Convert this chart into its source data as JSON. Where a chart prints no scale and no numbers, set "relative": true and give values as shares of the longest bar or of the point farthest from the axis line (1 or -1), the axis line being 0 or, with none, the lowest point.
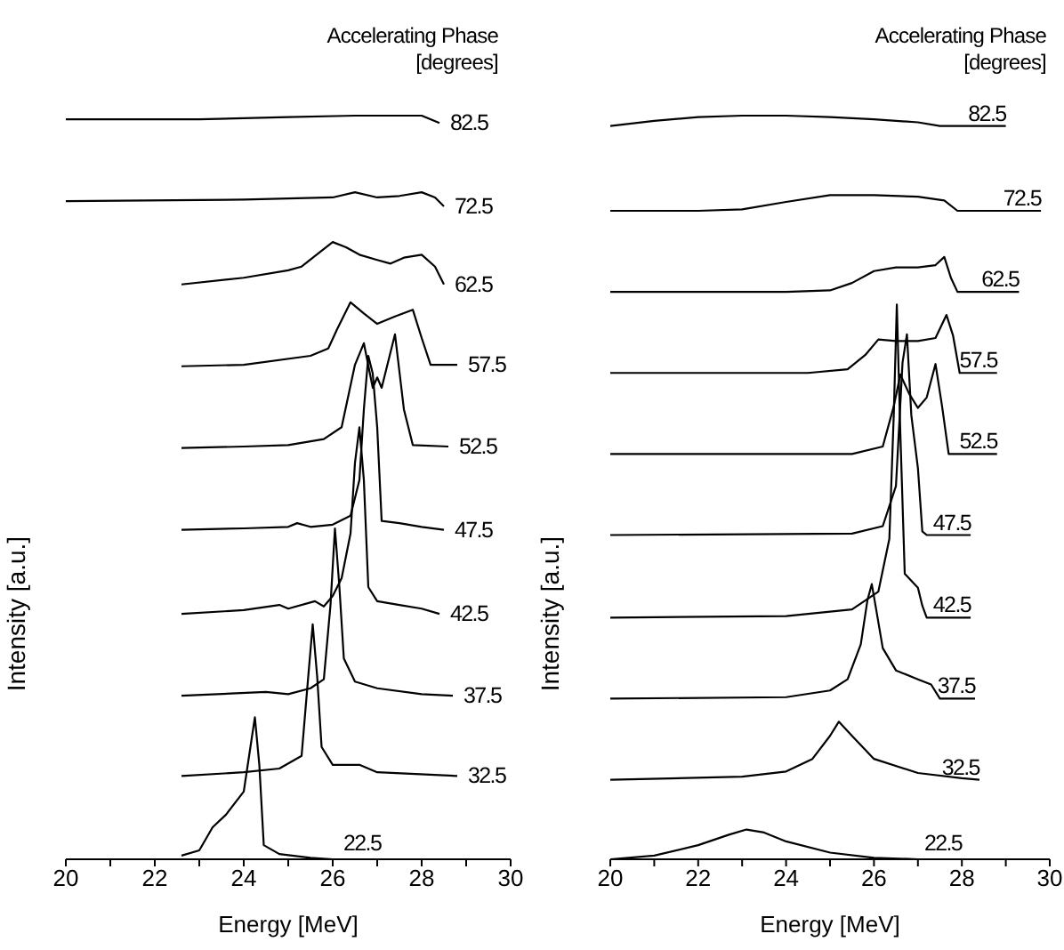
{
  "chart_data": [
    {
      "type": "line",
      "legend_title": "Accelerating Phase [degrees]",
      "xlabel": "Energy [MeV]",
      "ylabel": "Intensity [a.u.]",
      "relative": true,
      "xlim": [
        20,
        30
      ],
      "xticks": [
        20,
        {
          "value": 21,
          "label": null
        },
        22,
        {
          "value": 23,
          "label": null
        },
        24,
        {
          "value": 25,
          "label": null
        },
        26,
        {
          "value": 27,
          "label": null
        },
        28,
        {
          "value": 29,
          "label": null
        },
        30
      ],
      "legend": false,
      "series": [
        {
          "name": "22.5",
          "color": "#000000",
          "x": [
            22.6,
            23.0,
            23.3,
            23.6,
            24.0,
            24.15,
            24.25,
            24.35,
            24.45,
            24.8,
            25.5,
            26
          ],
          "values": [
            0.005,
            0.012,
            0.043,
            0.06,
            0.091,
            0.151,
            0.191,
            0.127,
            0.019,
            0.007,
            0.002,
            0
          ]
        },
        {
          "name": "32.5",
          "color": "#000000",
          "x": [
            22.6,
            24,
            24.8,
            25.3,
            25.45,
            25.55,
            25.65,
            25.75,
            26,
            26.6,
            27,
            28.8
          ],
          "values": [
            0.112,
            0.117,
            0.122,
            0.139,
            0.246,
            0.316,
            0.246,
            0.151,
            0.127,
            0.127,
            0.117,
            0.112
          ]
        },
        {
          "name": "37.5",
          "color": "#000000",
          "x": [
            22.6,
            24.5,
            25,
            25.5,
            25.8,
            25.95,
            26.05,
            26.15,
            26.25,
            26.5,
            27,
            28,
            28.7
          ],
          "values": [
            0.22,
            0.225,
            0.222,
            0.23,
            0.242,
            0.342,
            0.445,
            0.366,
            0.27,
            0.239,
            0.23,
            0.222,
            0.22
          ]
        },
        {
          "name": "42.5",
          "color": "#000000",
          "x": [
            22.6,
            24,
            24.8,
            25,
            25.6,
            25.8,
            26.0,
            26.2,
            26.4,
            26.5,
            26.6,
            26.7,
            26.8,
            27.0,
            27.5,
            28,
            28.4
          ],
          "values": [
            0.33,
            0.335,
            0.342,
            0.337,
            0.347,
            0.34,
            0.354,
            0.378,
            0.438,
            0.533,
            0.581,
            0.51,
            0.366,
            0.347,
            0.342,
            0.337,
            0.33
          ]
        },
        {
          "name": "47.5",
          "color": "#000000",
          "x": [
            22.6,
            24,
            25,
            25.2,
            25.5,
            26,
            26.4,
            26.6,
            26.7,
            26.8,
            26.9,
            27.0,
            27.1,
            27.5,
            28,
            28.5
          ],
          "values": [
            0.443,
            0.445,
            0.447,
            0.452,
            0.447,
            0.45,
            0.462,
            0.51,
            0.605,
            0.677,
            0.653,
            0.581,
            0.455,
            0.452,
            0.447,
            0.443
          ]
        },
        {
          "name": "52.5",
          "color": "#000000",
          "x": [
            22.6,
            24,
            25,
            25.8,
            26.2,
            26.5,
            26.7,
            26.9,
            27.0,
            27.1,
            27.4,
            27.6,
            27.8,
            28.6
          ],
          "values": [
            0.553,
            0.555,
            0.557,
            0.565,
            0.581,
            0.665,
            0.694,
            0.634,
            0.648,
            0.634,
            0.706,
            0.605,
            0.557,
            0.555
          ]
        },
        {
          "name": "57.5",
          "color": "#000000",
          "x": [
            22.6,
            24,
            25.5,
            25.9,
            26.1,
            26.4,
            26.7,
            27,
            27.4,
            27.8,
            28,
            28.2,
            28.8
          ],
          "values": [
            0.663,
            0.665,
            0.677,
            0.687,
            0.713,
            0.749,
            0.734,
            0.72,
            0.73,
            0.739,
            0.701,
            0.665,
            0.665
          ]
        },
        {
          "name": "62.5",
          "color": "#000000",
          "x": [
            22.6,
            24,
            25,
            25.3,
            25.7,
            26,
            26.3,
            26.6,
            27,
            27.3,
            27.6,
            28,
            28.3,
            28.5
          ],
          "values": [
            0.773,
            0.782,
            0.792,
            0.797,
            0.816,
            0.83,
            0.823,
            0.813,
            0.806,
            0.801,
            0.809,
            0.813,
            0.797,
            0.773
          ]
        },
        {
          "name": "72.5",
          "color": "#000000",
          "x": [
            20,
            24,
            26,
            26.5,
            27,
            27.5,
            28,
            28.3,
            28.5
          ],
          "values": [
            0.885,
            0.887,
            0.89,
            0.897,
            0.89,
            0.892,
            0.897,
            0.89,
            0.878
          ]
        },
        {
          "name": "82.5",
          "color": "#000000",
          "x": [
            20,
            23,
            25,
            26.5,
            28,
            28.4
          ],
          "values": [
            0.995,
            0.995,
            0.998,
            1.0,
            1.0,
            0.99
          ]
        }
      ]
    },
    {
      "type": "line",
      "legend_title": "Accelerating Phase [degrees]",
      "xlabel": "Energy [MeV]",
      "ylabel": "Intensity [a.u.]",
      "relative": true,
      "xlim": [
        20,
        30
      ],
      "xticks": [
        20,
        {
          "value": 21,
          "label": null
        },
        22,
        {
          "value": 23,
          "label": null
        },
        24,
        {
          "value": 25,
          "label": null
        },
        26,
        {
          "value": 27,
          "label": null
        },
        28,
        {
          "value": 29,
          "label": null
        },
        30
      ],
      "legend": false,
      "series": [
        {
          "name": "22.5",
          "color": "#000000",
          "x": [
            20,
            21,
            22,
            22.7,
            23.1,
            23.5,
            24,
            25,
            26,
            27,
            28
          ],
          "values": [
            0,
            0.005,
            0.019,
            0.033,
            0.04,
            0.036,
            0.024,
            0.009,
            0.002,
            0,
            0
          ]
        },
        {
          "name": "32.5",
          "color": "#000000",
          "x": [
            20,
            23,
            24,
            24.6,
            25.0,
            25.2,
            25.5,
            26,
            27,
            28,
            28.4
          ],
          "values": [
            0.107,
            0.111,
            0.118,
            0.135,
            0.166,
            0.185,
            0.166,
            0.135,
            0.116,
            0.109,
            0.107
          ]
        },
        {
          "name": "37.5",
          "color": "#000000",
          "x": [
            20,
            24,
            25,
            25.4,
            25.7,
            25.85,
            25.95,
            26.05,
            26.2,
            26.5,
            27,
            27.3,
            27.5,
            28.3
          ],
          "values": [
            0.216,
            0.218,
            0.227,
            0.242,
            0.289,
            0.348,
            0.37,
            0.336,
            0.284,
            0.254,
            0.242,
            0.235,
            0.216,
            0.216
          ]
        },
        {
          "name": "42.5",
          "color": "#000000",
          "x": [
            20,
            24,
            25.5,
            26.1,
            26.35,
            26.45,
            26.52,
            26.6,
            26.7,
            27.0,
            27.1,
            27.2,
            28.2
          ],
          "values": [
            0.325,
            0.327,
            0.336,
            0.36,
            0.431,
            0.597,
            0.746,
            0.573,
            0.384,
            0.365,
            0.341,
            0.325,
            0.325
          ]
        },
        {
          "name": "47.5",
          "color": "#000000",
          "x": [
            20,
            25.5,
            26.2,
            26.5,
            26.65,
            26.75,
            26.85,
            27.0,
            27.1,
            27.2,
            28.2
          ],
          "values": [
            0.436,
            0.438,
            0.448,
            0.502,
            0.668,
            0.706,
            0.597,
            0.526,
            0.441,
            0.436,
            0.436
          ]
        },
        {
          "name": "52.5",
          "color": "#000000",
          "x": [
            20,
            25.5,
            26.2,
            26.45,
            26.6,
            26.8,
            27.0,
            27.2,
            27.4,
            27.55,
            27.7,
            28.8
          ],
          "values": [
            0.545,
            0.545,
            0.555,
            0.609,
            0.652,
            0.626,
            0.607,
            0.621,
            0.666,
            0.609,
            0.545,
            0.545
          ]
        },
        {
          "name": "57.5",
          "color": "#000000",
          "x": [
            20,
            24.5,
            25.4,
            25.8,
            26.1,
            26.5,
            27,
            27.4,
            27.65,
            27.8,
            27.95,
            28.8
          ],
          "values": [
            0.654,
            0.654,
            0.659,
            0.678,
            0.699,
            0.697,
            0.697,
            0.701,
            0.732,
            0.704,
            0.654,
            0.654
          ]
        },
        {
          "name": "62.5",
          "color": "#000000",
          "x": [
            20,
            24,
            25,
            25.5,
            26,
            26.5,
            27,
            27.4,
            27.6,
            27.75,
            27.9,
            29.3
          ],
          "values": [
            0.763,
            0.763,
            0.765,
            0.775,
            0.791,
            0.796,
            0.796,
            0.799,
            0.81,
            0.782,
            0.763,
            0.763
          ]
        },
        {
          "name": "72.5",
          "color": "#000000",
          "x": [
            20,
            22,
            23,
            24,
            25,
            26,
            27,
            27.6,
            27.9,
            29.8
          ],
          "values": [
            0.872,
            0.872,
            0.874,
            0.884,
            0.893,
            0.893,
            0.891,
            0.886,
            0.872,
            0.872
          ]
        },
        {
          "name": "82.5",
          "color": "#000000",
          "x": [
            20,
            21,
            22,
            23,
            24,
            25,
            26,
            27,
            27.5,
            29
          ],
          "values": [
            0.986,
            0.993,
            0.998,
            1.0,
            1.0,
            0.998,
            0.995,
            0.991,
            0.986,
            0.986
          ]
        }
      ]
    }
  ]
}
